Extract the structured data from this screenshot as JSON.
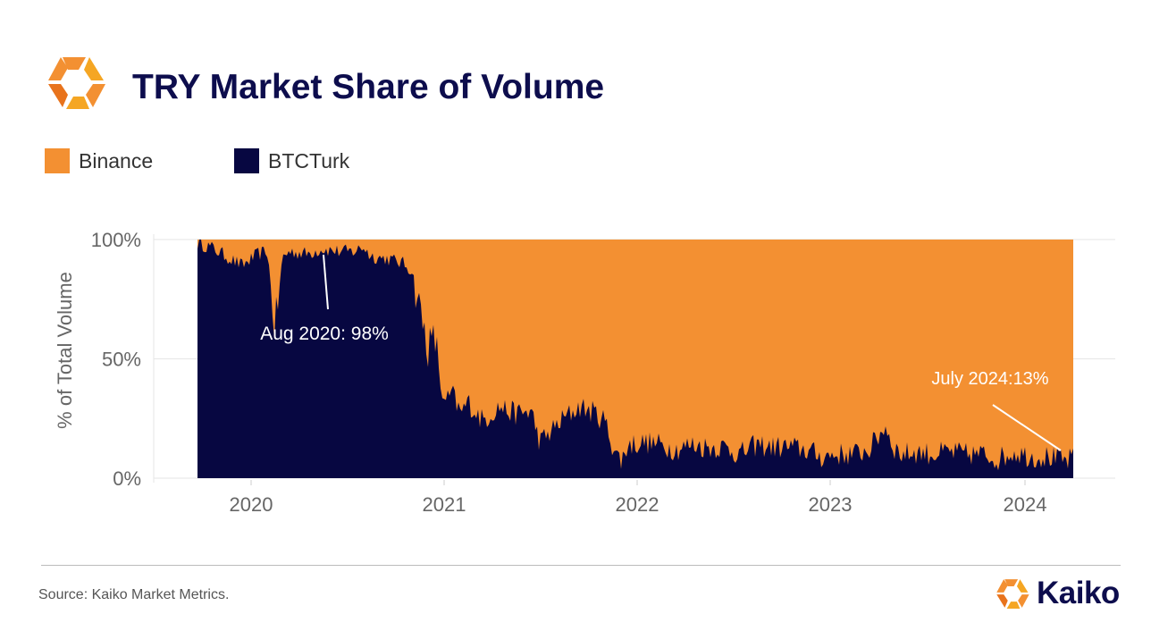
{
  "header": {
    "title": "TRY Market Share of Volume"
  },
  "legend": [
    {
      "label": "Binance",
      "color": "#f39032"
    },
    {
      "label": "BTCTurk",
      "color": "#070741"
    }
  ],
  "colors": {
    "binance": "#f39032",
    "btcturk": "#070741",
    "brand_orange": "#f39032",
    "title_navy": "#0d0d4d"
  },
  "footer": {
    "source": "Source: Kaiko Market Metrics.",
    "brand": "Kaiko"
  },
  "chart_data": {
    "type": "area",
    "title": "TRY Market Share of Volume",
    "ylabel": "% of Total Volume",
    "xlabel": "",
    "ylim": [
      0,
      100
    ],
    "y_ticks": [
      {
        "value": 0,
        "label": "0%"
      },
      {
        "value": 50,
        "label": "50%"
      },
      {
        "value": 100,
        "label": "100%"
      }
    ],
    "x_ticks": [
      "2020",
      "2021",
      "2022",
      "2023",
      "2024"
    ],
    "grid": "horizontal",
    "legend_position": "top-left",
    "stacked_to_100": true,
    "series": [
      {
        "name": "BTCTurk",
        "color": "#070741",
        "x": [
          "2019-09-15",
          "2019-10-15",
          "2019-11-15",
          "2019-12-15",
          "2020-01-15",
          "2020-02-01",
          "2020-02-15",
          "2020-03-01",
          "2020-03-15",
          "2020-04-15",
          "2020-05-15",
          "2020-06-15",
          "2020-07-15",
          "2020-08-01",
          "2020-08-15",
          "2020-09-15",
          "2020-10-15",
          "2020-11-01",
          "2020-11-15",
          "2020-12-01",
          "2020-12-15",
          "2021-01-01",
          "2021-01-15",
          "2021-02-01",
          "2021-02-15",
          "2021-03-01",
          "2021-03-15",
          "2021-04-15",
          "2021-05-15",
          "2021-06-15",
          "2021-07-01",
          "2021-07-15",
          "2021-08-15",
          "2021-09-15",
          "2021-10-15",
          "2021-11-01",
          "2021-11-15",
          "2021-12-01",
          "2021-12-15",
          "2022-01-15",
          "2022-02-15",
          "2022-03-15",
          "2022-04-15",
          "2022-05-15",
          "2022-06-15",
          "2022-07-15",
          "2022-08-15",
          "2022-09-15",
          "2022-10-15",
          "2022-11-15",
          "2022-12-15",
          "2023-01-15",
          "2023-02-15",
          "2023-03-15",
          "2023-04-01",
          "2023-04-15",
          "2023-05-01",
          "2023-05-15",
          "2023-06-15",
          "2023-07-15",
          "2023-08-15",
          "2023-09-15",
          "2023-10-15",
          "2023-11-15",
          "2023-12-15",
          "2024-01-15",
          "2024-02-15",
          "2024-03-01",
          "2024-03-15",
          "2024-04-01"
        ],
        "values": [
          99,
          97,
          93,
          89,
          94,
          95,
          62,
          93,
          95,
          94,
          96,
          95,
          95,
          97,
          93,
          92,
          90,
          87,
          72,
          55,
          58,
          30,
          36,
          27,
          32,
          28,
          24,
          30,
          27,
          28,
          15,
          18,
          25,
          30,
          27,
          24,
          14,
          7,
          14,
          15,
          14,
          12,
          14,
          13,
          13,
          10,
          14,
          13,
          13,
          12,
          9,
          10,
          10,
          12,
          17,
          22,
          13,
          10,
          11,
          10,
          11,
          10,
          10,
          8,
          11,
          9,
          9,
          8,
          7,
          8
        ]
      },
      {
        "name": "Binance",
        "color": "#f39032",
        "x": [
          "2019-09-15",
          "2019-10-15",
          "2019-11-15",
          "2019-12-15",
          "2020-01-15",
          "2020-02-01",
          "2020-02-15",
          "2020-03-01",
          "2020-03-15",
          "2020-04-15",
          "2020-05-15",
          "2020-06-15",
          "2020-07-15",
          "2020-08-01",
          "2020-08-15",
          "2020-09-15",
          "2020-10-15",
          "2020-11-01",
          "2020-11-15",
          "2020-12-01",
          "2020-12-15",
          "2021-01-01",
          "2021-01-15",
          "2021-02-01",
          "2021-02-15",
          "2021-03-01",
          "2021-03-15",
          "2021-04-15",
          "2021-05-15",
          "2021-06-15",
          "2021-07-01",
          "2021-07-15",
          "2021-08-15",
          "2021-09-15",
          "2021-10-15",
          "2021-11-01",
          "2021-11-15",
          "2021-12-01",
          "2021-12-15",
          "2022-01-15",
          "2022-02-15",
          "2022-03-15",
          "2022-04-15",
          "2022-05-15",
          "2022-06-15",
          "2022-07-15",
          "2022-08-15",
          "2022-09-15",
          "2022-10-15",
          "2022-11-15",
          "2022-12-15",
          "2023-01-15",
          "2023-02-15",
          "2023-03-15",
          "2023-04-01",
          "2023-04-15",
          "2023-05-01",
          "2023-05-15",
          "2023-06-15",
          "2023-07-15",
          "2023-08-15",
          "2023-09-15",
          "2023-10-15",
          "2023-11-15",
          "2023-12-15",
          "2024-01-15",
          "2024-02-15",
          "2024-03-01",
          "2024-03-15",
          "2024-04-01"
        ],
        "values": [
          1,
          3,
          7,
          11,
          6,
          5,
          38,
          7,
          5,
          6,
          4,
          5,
          5,
          3,
          7,
          8,
          10,
          13,
          28,
          45,
          42,
          70,
          64,
          73,
          68,
          72,
          76,
          70,
          73,
          72,
          85,
          82,
          75,
          70,
          73,
          76,
          86,
          93,
          86,
          85,
          86,
          88,
          86,
          87,
          87,
          90,
          86,
          87,
          87,
          88,
          91,
          90,
          90,
          88,
          83,
          78,
          87,
          90,
          89,
          90,
          89,
          90,
          90,
          92,
          89,
          91,
          91,
          92,
          93,
          92
        ]
      }
    ],
    "annotations": [
      {
        "text": "Aug 2020: 98%",
        "x": "2020-06-10",
        "y": 98
      },
      {
        "text": "July 2024:13%",
        "x": "2024-03-31",
        "y": 10
      }
    ]
  }
}
